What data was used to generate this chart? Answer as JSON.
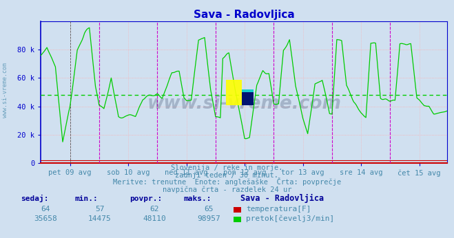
{
  "title": "Sava - Radovljica",
  "title_color": "#0000cc",
  "background_color": "#d0e0f0",
  "plot_bg_color": "#d0e0f0",
  "xlabel_ticks": [
    "pet 09 avg",
    "sob 10 avg",
    "ned 11 avg",
    "pon 12 avg",
    "tor 13 avg",
    "sre 14 avg",
    "čet 15 avg"
  ],
  "yticks": [
    0,
    20000,
    40000,
    60000,
    80000
  ],
  "ytick_labels": [
    "0",
    "20 k",
    "40 k",
    "60 k",
    "80 k"
  ],
  "ylim": [
    0,
    100000
  ],
  "avg_line_value": 48110,
  "avg_line_color": "#00cc00",
  "grid_color_h": "#ffaaaa",
  "day_line_color": "#cc00cc",
  "border_color": "#0000cc",
  "bottom_line_color": "#cc0000",
  "text_lines": [
    "Slovenija / reke in morje.",
    "zadnji teden / 30 minut.",
    "Meritve: trenutne  Enote: anglešaške  Črta: povprečje",
    "navpična črta - razdelek 24 ur"
  ],
  "text_color": "#4488aa",
  "table_headers": [
    "sedaj:",
    "min.:",
    "povpr.:",
    "maks.:"
  ],
  "table_header_color": "#000099",
  "series1_name": "temperatura[F]",
  "series1_color": "#cc0000",
  "series1_values_label": [
    "64",
    "57",
    "62",
    "65"
  ],
  "series2_name": "pretok[čevelj3/min]",
  "series2_color": "#00cc00",
  "series2_values_label": [
    "35658",
    "14475",
    "48110",
    "98957"
  ],
  "watermark": "www.si-vreme.com",
  "watermark_color": "#334466"
}
